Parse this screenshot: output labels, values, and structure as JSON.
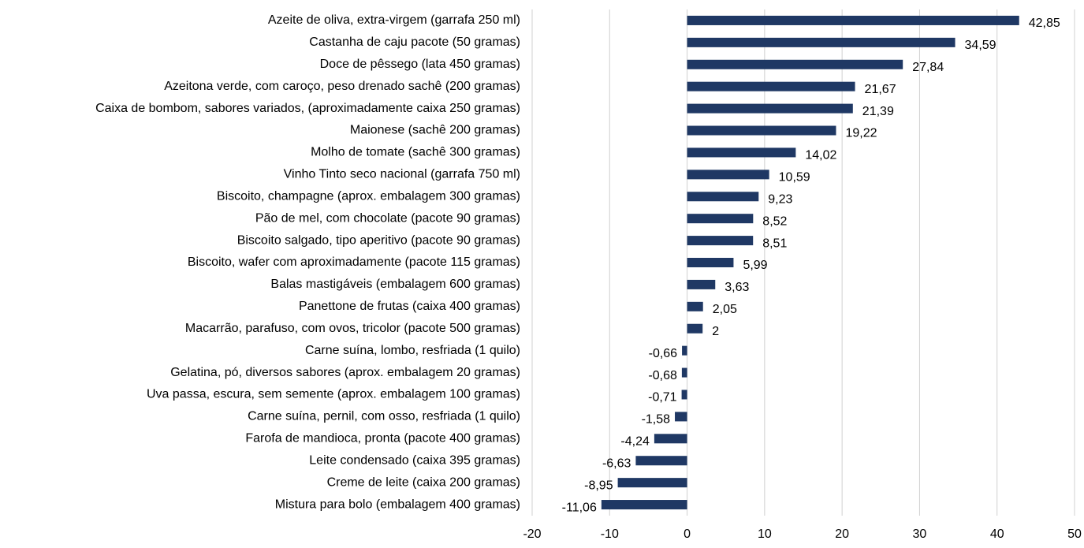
{
  "chart_data": {
    "type": "hbar",
    "categories": [
      "Azeite de oliva, extra-virgem (garrafa 250 ml)",
      "Castanha de caju pacote (50 gramas)",
      "Doce de pêssego (lata 450 gramas)",
      "Azeitona verde, com caroço, peso drenado sachê (200 gramas)",
      "Caixa de bombom, sabores variados, (aproximadamente caixa 250 gramas)",
      "Maionese (sachê 200 gramas)",
      "Molho de tomate (sachê 300 gramas)",
      "Vinho Tinto seco nacional (garrafa 750 ml)",
      "Biscoito, champagne (aprox. embalagem 300 gramas)",
      "Pão de mel, com chocolate (pacote 90 gramas)",
      "Biscoito salgado, tipo aperitivo (pacote 90 gramas)",
      "Biscoito, wafer com aproximadamente (pacote 115 gramas)",
      "Balas mastigáveis (embalagem 600 gramas)",
      "Panettone de frutas (caixa 400 gramas)",
      "Macarrão, parafuso, com ovos, tricolor (pacote 500 gramas)",
      "Carne suína, lombo, resfriada (1 quilo)",
      "Gelatina, pó, diversos sabores (aprox. embalagem 20 gramas)",
      "Uva passa, escura, sem semente (aprox. embalagem 100 gramas)",
      "Carne suína, pernil, com osso, resfriada (1 quilo)",
      "Farofa de mandioca, pronta (pacote 400 gramas)",
      "Leite condensado (caixa 395 gramas)",
      "Creme de leite (caixa 200 gramas)",
      "Mistura para bolo (embalagem 400 gramas)"
    ],
    "values": [
      42.85,
      34.59,
      27.84,
      21.67,
      21.39,
      19.22,
      14.02,
      10.59,
      9.23,
      8.52,
      8.51,
      5.99,
      3.63,
      2.05,
      2,
      -0.66,
      -0.68,
      -0.71,
      -1.58,
      -4.24,
      -6.63,
      -8.95,
      -11.06
    ],
    "value_labels": [
      "42,85",
      "34,59",
      "27,84",
      "21,67",
      "21,39",
      "19,22",
      "14,02",
      "10,59",
      "9,23",
      "8,52",
      "8,51",
      "5,99",
      "3,63",
      "2,05",
      "2",
      "-0,66",
      "-0,68",
      "-0,71",
      "-1,58",
      "-4,24",
      "-6,63",
      "-8,95",
      "-11,06"
    ],
    "color": "#1f3864",
    "xlim": [
      -20,
      50
    ],
    "xticks": [
      -20,
      -10,
      0,
      10,
      20,
      30,
      40,
      50
    ],
    "grid": true
  }
}
